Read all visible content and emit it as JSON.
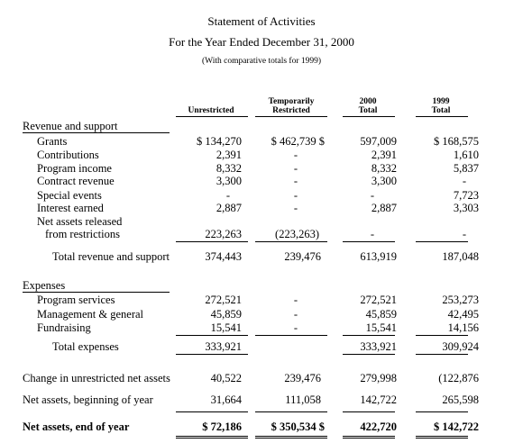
{
  "header": {
    "title": "Statement of Activities",
    "period": "For the Year Ended December 31, 2000",
    "note": "(With comparative totals for 1999)"
  },
  "columns": {
    "unrestricted": "Unrestricted",
    "temp_line1": "Temporarily",
    "temp_line2": "Restricted",
    "y2000_line1": "2000",
    "y2000_line2": "Total",
    "y1999_line1": "1999",
    "y1999_line2": "Total"
  },
  "revenue": {
    "section_label": "Revenue and support",
    "rows": [
      {
        "label": "Grants",
        "unrestricted": "$ 134,270",
        "temp": "$ 462,739 $",
        "t2000": "597,009",
        "t1999": "$ 168,575"
      },
      {
        "label": "Contributions",
        "unrestricted": "2,391",
        "temp": "-",
        "t2000": "2,391",
        "t1999": "1,610"
      },
      {
        "label": "Program income",
        "unrestricted": "8,332",
        "temp": "-",
        "t2000": "8,332",
        "t1999": "5,837"
      },
      {
        "label": "Contract revenue",
        "unrestricted": "3,300",
        "temp": "-",
        "t2000": "3,300",
        "t1999": "-"
      },
      {
        "label": "Special events",
        "unrestricted": "-",
        "temp": "-",
        "t2000": "-",
        "t1999": "7,723"
      },
      {
        "label": "Interest earned",
        "unrestricted": "2,887",
        "temp": "-",
        "t2000": "2,887",
        "t1999": "3,303"
      },
      {
        "label": "Net assets released",
        "unrestricted": "",
        "temp": "",
        "t2000": "",
        "t1999": ""
      },
      {
        "label": "from restrictions",
        "unrestricted": "223,263",
        "temp": "(223,263)",
        "t2000": "-",
        "t1999": "-"
      }
    ],
    "total": {
      "label": "Total revenue and support",
      "unrestricted": "374,443",
      "temp": "239,476",
      "t2000": "613,919",
      "t1999": "187,048"
    }
  },
  "expenses": {
    "section_label": "Expenses",
    "rows": [
      {
        "label": "Program services",
        "unrestricted": "272,521",
        "temp": "-",
        "t2000": "272,521",
        "t1999": "253,273"
      },
      {
        "label": "Management & general",
        "unrestricted": "45,859",
        "temp": "-",
        "t2000": "45,859",
        "t1999": "42,495"
      },
      {
        "label": "Fundraising",
        "unrestricted": "15,541",
        "temp": "-",
        "t2000": "15,541",
        "t1999": "14,156"
      }
    ],
    "total": {
      "label": "Total expenses",
      "unrestricted": "333,921",
      "temp": "",
      "t2000": "333,921",
      "t1999": "309,924"
    }
  },
  "change": {
    "label": "Change in unrestricted net assets",
    "unrestricted": "40,522",
    "temp": "239,476",
    "t2000": "279,998",
    "t1999": "(122,876"
  },
  "beginning": {
    "label": "Net assets, beginning of year",
    "unrestricted": "31,664",
    "temp": "111,058",
    "t2000": "142,722",
    "t1999": "265,598"
  },
  "ending": {
    "label": "Net assets, end of year",
    "unrestricted": "$ 72,186",
    "temp": "$ 350,534 $",
    "t2000": "422,720",
    "t1999": "$ 142,722"
  }
}
